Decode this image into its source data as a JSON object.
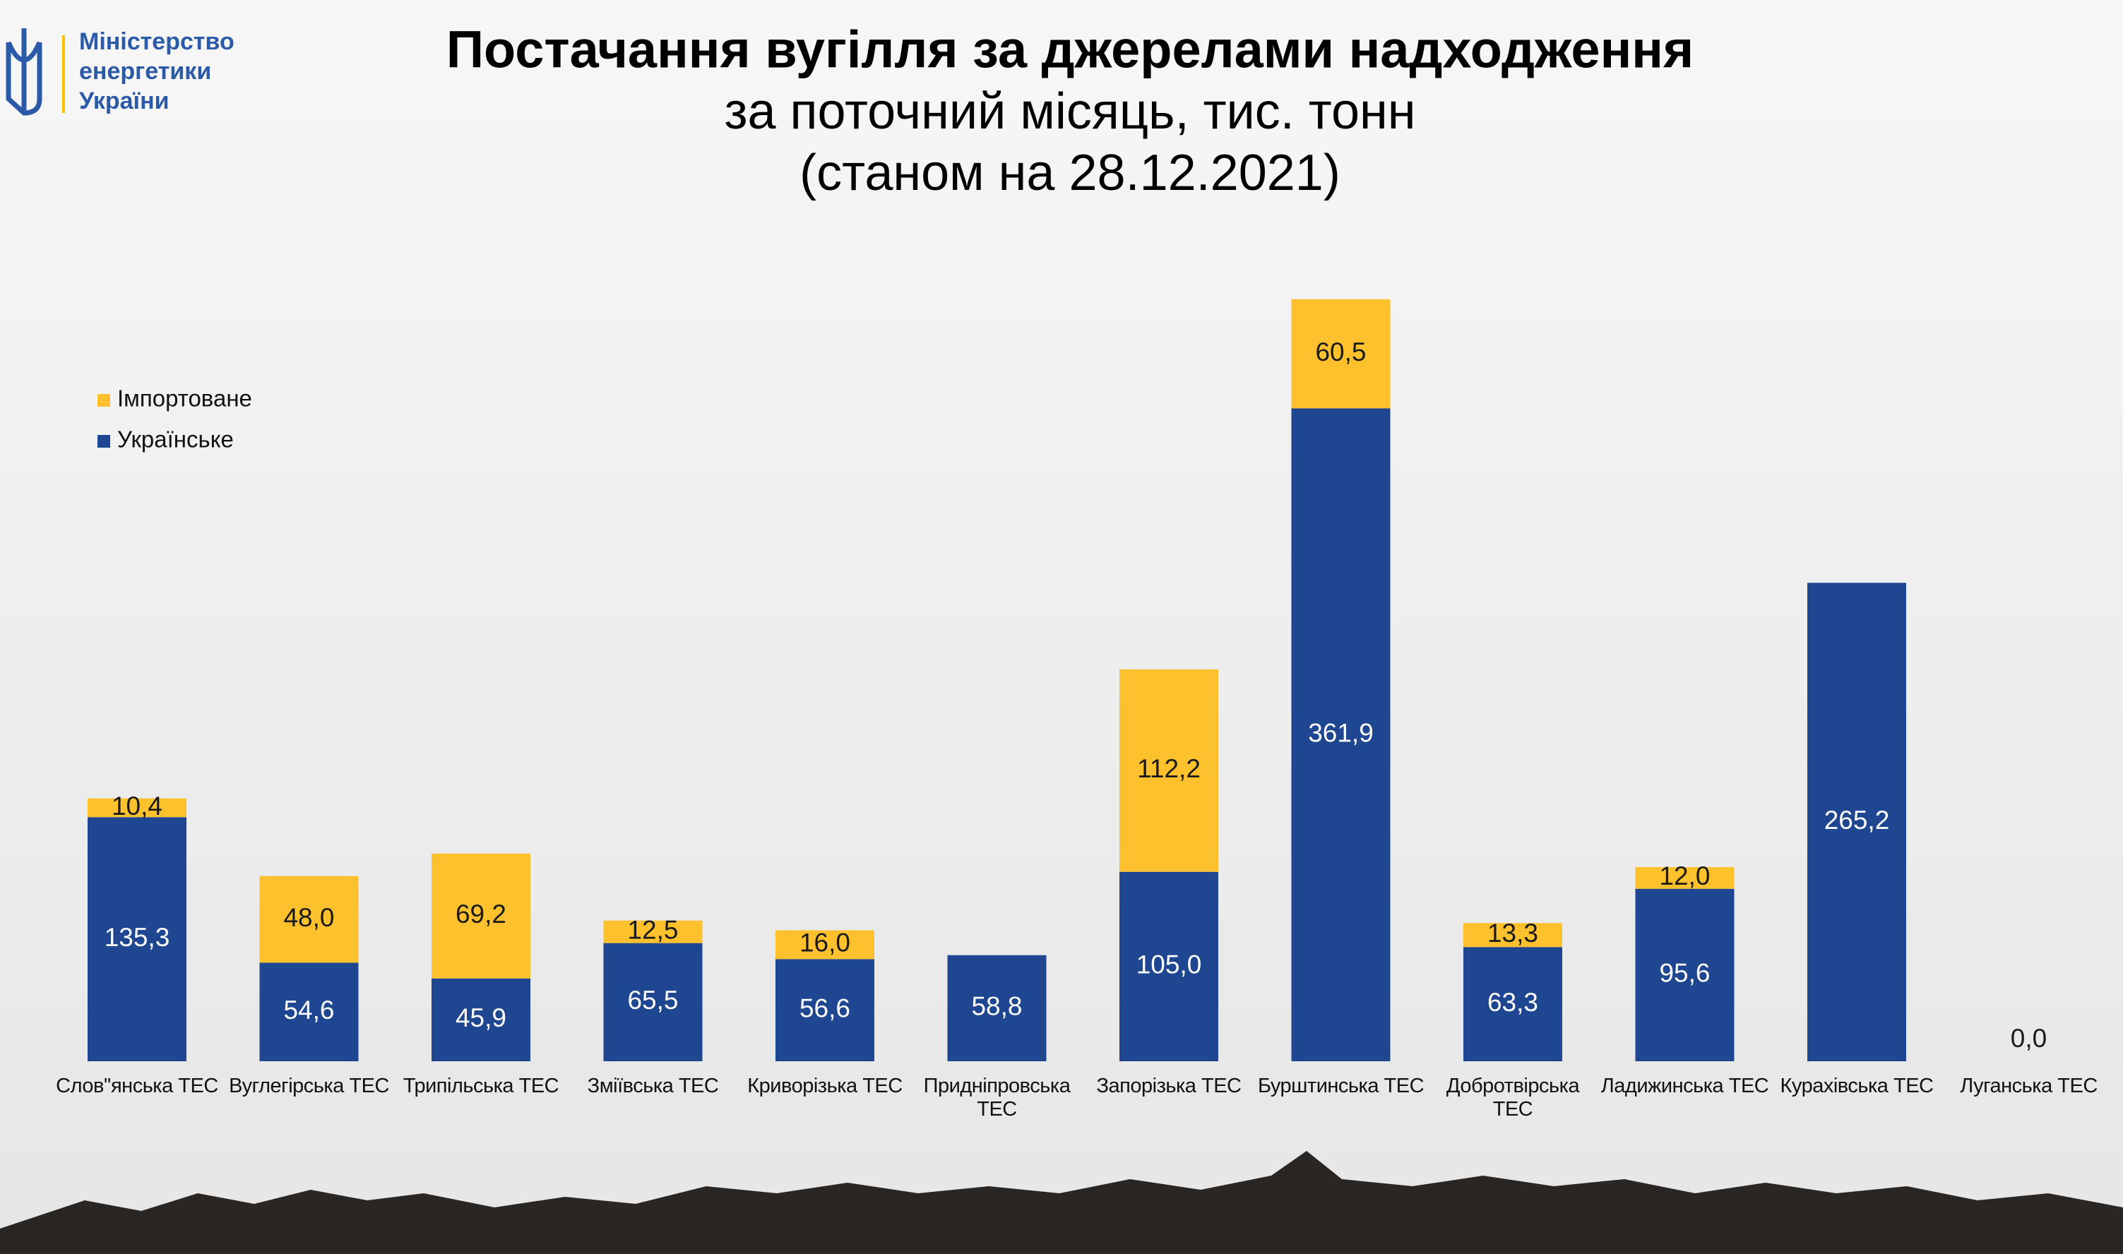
{
  "logo_text": [
    "Міністерство",
    "енергетики",
    "України"
  ],
  "chart_data": {
    "type": "stacked-bar",
    "title": "Постачання вугілля за джерелами надходження",
    "subtitle": [
      "за поточний місяць, тис. тонн",
      "(станом на 28.12.2021)"
    ],
    "categories": [
      "Слов''янська ТЕС",
      "Вуглегірська ТЕС",
      "Трипільська ТЕС",
      "Зміївська ТЕС",
      "Криворізька ТЕС",
      "Придніпровська ТЕС",
      "Запорізька ТЕС",
      "Бурштинська ТЕС",
      "Добротвірська ТЕС",
      "Ладижинська ТЕС",
      "Курахівська ТЕС",
      "Луганська ТЕС"
    ],
    "series": [
      {
        "name": "Українське",
        "color": "#1f4690",
        "values": [
          135.3,
          54.6,
          45.9,
          65.5,
          56.6,
          58.8,
          105.0,
          361.9,
          63.3,
          95.6,
          265.2,
          0.0
        ],
        "value_labels": [
          "135,3",
          "54,6",
          "45,9",
          "65,5",
          "56,6",
          "58,8",
          "105,0",
          "361,9",
          "63,3",
          "95,6",
          "265,2",
          "0,0"
        ],
        "label_color": "#ffffff"
      },
      {
        "name": "Імпортоване",
        "color": "#fdc12e",
        "values": [
          10.4,
          48.0,
          69.2,
          12.5,
          16.0,
          null,
          112.2,
          60.5,
          13.3,
          12.0,
          null,
          null
        ],
        "value_labels": [
          "10,4",
          "48,0",
          "69,2",
          "12,5",
          "16,0",
          null,
          "112,2",
          "60,5",
          "13,3",
          "12,0",
          null,
          null
        ],
        "label_color": "#1a1a1a"
      }
    ],
    "legend": "upper left"
  }
}
